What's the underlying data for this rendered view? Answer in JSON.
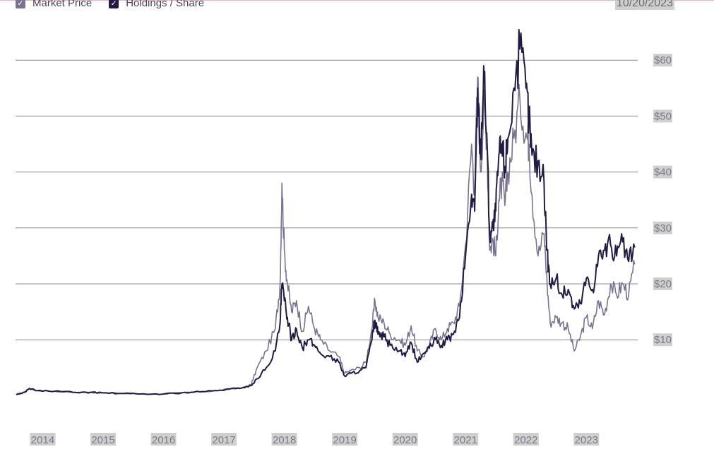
{
  "legend": {
    "items": [
      {
        "label": "Market Price",
        "checked": true,
        "color": "#7a738f"
      },
      {
        "label": "Holdings / Share",
        "checked": true,
        "color": "#241b44"
      }
    ]
  },
  "date_badge": "10/20/2023",
  "colors": {
    "market_price": "#7a738f",
    "holdings_share": "#241b44",
    "label_bg": "#cfcfcf",
    "gridline": "#8a8a96"
  },
  "chart_data": {
    "type": "line",
    "title": "",
    "xlabel": "",
    "ylabel": "",
    "xlim": [
      2013.55,
      2023.85
    ],
    "ylim": [
      -5,
      70
    ],
    "y_ticks": [
      10,
      20,
      30,
      40,
      50,
      60
    ],
    "y_tick_labels": [
      "$10",
      "$20",
      "$30",
      "$40",
      "$50",
      "$60"
    ],
    "x_ticks": [
      2014,
      2015,
      2016,
      2017,
      2018,
      2019,
      2020,
      2021,
      2022,
      2023
    ],
    "x_tick_labels": [
      "2014",
      "2015",
      "2016",
      "2017",
      "2018",
      "2019",
      "2020",
      "2021",
      "2022",
      "2023"
    ],
    "grid": true,
    "legend_position": "top-left",
    "series": [
      {
        "name": "Market Price",
        "color": "#7a738f",
        "x": [
          2013.56,
          2013.7,
          2013.78,
          2013.9,
          2014.2,
          2014.5,
          2014.8,
          2015.0,
          2015.3,
          2015.6,
          2016.0,
          2016.3,
          2016.6,
          2016.9,
          2017.1,
          2017.3,
          2017.45,
          2017.55,
          2017.7,
          2017.85,
          2017.93,
          2017.96,
          2018.0,
          2018.05,
          2018.12,
          2018.2,
          2018.3,
          2018.4,
          2018.5,
          2018.6,
          2018.75,
          2018.9,
          2019.0,
          2019.1,
          2019.25,
          2019.35,
          2019.45,
          2019.5,
          2019.55,
          2019.65,
          2019.75,
          2019.9,
          2020.0,
          2020.1,
          2020.2,
          2020.3,
          2020.4,
          2020.5,
          2020.6,
          2020.7,
          2020.8,
          2020.9,
          2021.0,
          2021.1,
          2021.15,
          2021.2,
          2021.25,
          2021.3,
          2021.35,
          2021.4,
          2021.45,
          2021.5,
          2021.55,
          2021.6,
          2021.65,
          2021.7,
          2021.8,
          2021.9,
          2022.0,
          2022.05,
          2022.1,
          2022.2,
          2022.3,
          2022.35,
          2022.4,
          2022.5,
          2022.6,
          2022.7,
          2022.8,
          2022.9,
          2023.0,
          2023.1,
          2023.2,
          2023.3,
          2023.4,
          2023.5,
          2023.6,
          2023.7,
          2023.8
        ],
        "values": [
          0.2,
          0.6,
          1.3,
          0.9,
          0.8,
          0.6,
          0.6,
          0.5,
          0.4,
          0.3,
          0.3,
          0.5,
          0.7,
          0.9,
          1.2,
          1.4,
          2.0,
          5.0,
          8.0,
          12.0,
          20.0,
          38.0,
          26.0,
          20.0,
          15.0,
          17.0,
          11.5,
          16.0,
          12.0,
          10.0,
          8.0,
          7.0,
          4.0,
          4.5,
          5.0,
          6.0,
          12.0,
          17.0,
          14.0,
          13.0,
          11.0,
          10.0,
          9.0,
          12.5,
          8.0,
          7.0,
          9.0,
          12.0,
          10.0,
          12.0,
          13.0,
          16.0,
          27.0,
          45.0,
          37.0,
          57.0,
          40.0,
          52.0,
          47.0,
          26.0,
          28.0,
          25.0,
          35.0,
          38.0,
          34.0,
          40.0,
          46.0,
          53.0,
          47.0,
          45.0,
          36.0,
          25.0,
          29.0,
          20.0,
          13.0,
          14.0,
          13.0,
          12.0,
          8.0,
          10.5,
          14.0,
          12.0,
          17.0,
          14.5,
          20.0,
          18.0,
          20.0,
          18.0,
          23.5
        ]
      },
      {
        "name": "Holdings / Share",
        "color": "#241b44",
        "x": [
          2013.56,
          2013.7,
          2013.78,
          2013.9,
          2014.2,
          2014.5,
          2014.8,
          2015.0,
          2015.3,
          2015.6,
          2016.0,
          2016.3,
          2016.6,
          2016.9,
          2017.1,
          2017.3,
          2017.45,
          2017.55,
          2017.7,
          2017.85,
          2017.93,
          2017.96,
          2018.0,
          2018.05,
          2018.12,
          2018.2,
          2018.3,
          2018.4,
          2018.5,
          2018.6,
          2018.75,
          2018.9,
          2019.0,
          2019.1,
          2019.25,
          2019.35,
          2019.45,
          2019.5,
          2019.55,
          2019.65,
          2019.75,
          2019.9,
          2020.0,
          2020.1,
          2020.2,
          2020.3,
          2020.4,
          2020.5,
          2020.6,
          2020.7,
          2020.8,
          2020.9,
          2021.0,
          2021.1,
          2021.15,
          2021.2,
          2021.25,
          2021.3,
          2021.35,
          2021.4,
          2021.45,
          2021.5,
          2021.55,
          2021.6,
          2021.65,
          2021.7,
          2021.8,
          2021.9,
          2022.0,
          2022.05,
          2022.1,
          2022.2,
          2022.3,
          2022.35,
          2022.4,
          2022.5,
          2022.6,
          2022.7,
          2022.8,
          2022.9,
          2023.0,
          2023.1,
          2023.2,
          2023.3,
          2023.4,
          2023.5,
          2023.6,
          2023.7,
          2023.8
        ],
        "values": [
          0.2,
          0.6,
          1.3,
          0.9,
          0.8,
          0.6,
          0.6,
          0.5,
          0.4,
          0.3,
          0.3,
          0.5,
          0.7,
          0.9,
          1.2,
          1.4,
          1.8,
          3.0,
          5.0,
          8.0,
          13.0,
          20.0,
          17.0,
          14.0,
          10.0,
          12.0,
          8.5,
          10.0,
          9.0,
          7.5,
          7.0,
          6.0,
          3.5,
          4.0,
          4.5,
          5.0,
          10.0,
          13.5,
          11.0,
          10.5,
          9.0,
          8.0,
          7.0,
          9.5,
          6.0,
          7.5,
          8.5,
          10.0,
          9.0,
          10.0,
          11.0,
          14.0,
          25.0,
          36.0,
          33.0,
          55.0,
          43.0,
          59.0,
          47.0,
          29.0,
          30.0,
          33.0,
          43.0,
          45.0,
          41.0,
          46.0,
          55.0,
          62.0,
          55.0,
          50.0,
          43.0,
          42.0,
          38.0,
          26.0,
          20.0,
          21.0,
          18.0,
          19.0,
          15.5,
          16.5,
          21.0,
          19.0,
          25.0,
          26.0,
          27.0,
          25.0,
          27.5,
          24.0,
          26.5
        ]
      }
    ]
  }
}
